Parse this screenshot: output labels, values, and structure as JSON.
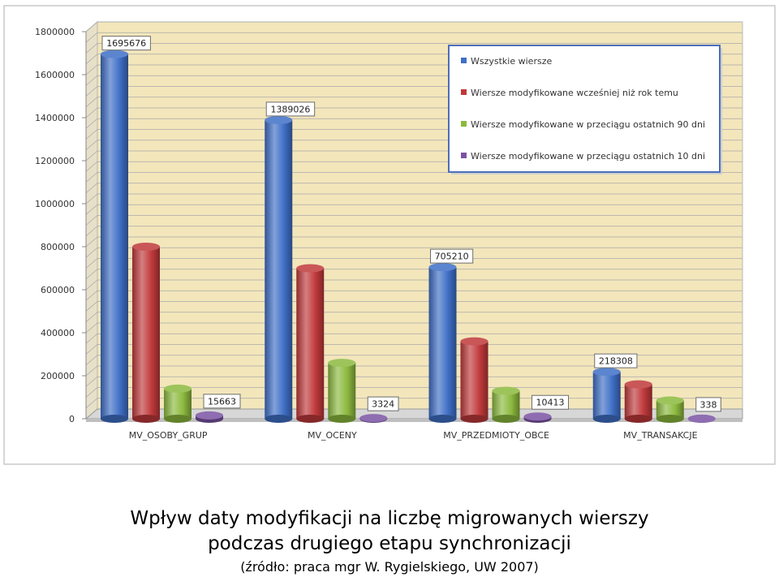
{
  "caption": {
    "line1": "Wpływ daty modyfikacji na liczbę migrowanych wierszy",
    "line2": "podczas drugiego etapu synchronizacji",
    "line3": "(źródło: praca mgr W. Rygielskiego, UW 2007)"
  },
  "chart_data": {
    "type": "bar",
    "title": "",
    "xlabel": "",
    "ylabel": "",
    "ylim": [
      0,
      1800000
    ],
    "yticks": [
      "0",
      "200000",
      "400000",
      "600000",
      "800000",
      "1000000",
      "1200000",
      "1400000",
      "1600000",
      "1800000"
    ],
    "grid": true,
    "legend_position": "top-right",
    "categories": [
      "MV_OSOBY_GRUP",
      "MV_OCENY",
      "MV_PRZEDMIOTY_OBCE",
      "MV_TRANSAKCJE"
    ],
    "series": [
      {
        "name": "Wszystkie wiersze",
        "color": "#3f6fc6",
        "values": [
          1695676,
          1389026,
          705210,
          218308
        ]
      },
      {
        "name": "Wiersze modyfikowane wcześniej niż rok temu",
        "color": "#c0393b",
        "values": [
          800000,
          700000,
          360000,
          160000
        ]
      },
      {
        "name": "Wiersze modyfikowane w przeciągu ostatnich 90 dni",
        "color": "#8cb93e",
        "values": [
          140000,
          260000,
          130000,
          85000
        ]
      },
      {
        "name": "Wiersze modyfikowane w przeciągu ostatnich 10 dni",
        "color": "#7b53a3",
        "values": [
          15663,
          3324,
          10413,
          338
        ]
      }
    ],
    "data_labels": [
      {
        "series": 0,
        "category": 0,
        "text": "1695676"
      },
      {
        "series": 0,
        "category": 1,
        "text": "1389026"
      },
      {
        "series": 0,
        "category": 2,
        "text": "705210"
      },
      {
        "series": 0,
        "category": 3,
        "text": "218308"
      },
      {
        "series": 3,
        "category": 0,
        "text": "15663"
      },
      {
        "series": 3,
        "category": 1,
        "text": "3324"
      },
      {
        "series": 3,
        "category": 2,
        "text": "10413"
      },
      {
        "series": 3,
        "category": 3,
        "text": "338"
      }
    ]
  }
}
